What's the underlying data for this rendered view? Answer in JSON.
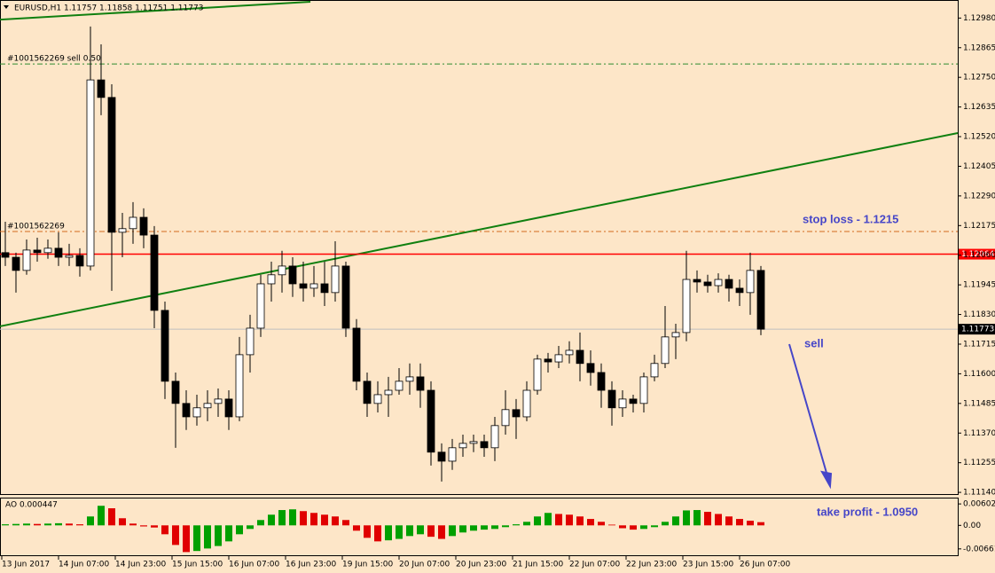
{
  "chart_data": [
    {
      "type": "candlestick",
      "title": "EURUSD,H1  1.11757 1.11858 1.11751 1.11773",
      "ylim": [
        1.1113,
        1.1305
      ],
      "yticks": [
        {
          "value": 1.1298,
          "label": "1.12980"
        },
        1.12865,
        {
          "value": 1.1275,
          "label": "1.12750"
        },
        1.12635,
        {
          "value": 1.1252,
          "label": "1.12520"
        },
        1.12405,
        {
          "value": 1.1229,
          "label": "1.12290"
        },
        1.12175,
        {
          "value": 1.1206,
          "label": "1.12060"
        },
        1.11945,
        {
          "value": 1.1183,
          "label": "1.11830"
        },
        1.11715,
        {
          "value": 1.116,
          "label": "1.11600"
        },
        1.11485,
        {
          "value": 1.1137,
          "label": "1.11370"
        },
        1.11255,
        {
          "value": 1.1114,
          "label": "1.11140"
        }
      ],
      "time_labels": [
        "13 Jun 2017",
        "14 Jun 07:00",
        "14 Jun 23:00",
        "15 Jun 15:00",
        "16 Jun 07:00",
        "16 Jun 23:00",
        "19 Jun 15:00",
        "20 Jun 07:00",
        "20 Jun 23:00",
        "21 Jun 15:00",
        "22 Jun 07:00",
        "22 Jun 23:00",
        "23 Jun 15:00",
        "26 Jun 07:00"
      ],
      "up_color": "#ffffff",
      "down_color": "#000000",
      "values": [
        [
          1.1207,
          1.1219,
          1.12018,
          1.12052
        ],
        [
          1.12052,
          1.1207,
          1.11915,
          1.12001
        ],
        [
          1.12001,
          1.12121,
          1.11984,
          1.1208
        ],
        [
          1.1208,
          1.12128,
          1.12035,
          1.1207
        ],
        [
          1.1207,
          1.12121,
          1.12046,
          1.12087
        ],
        [
          1.12087,
          1.12149,
          1.12018,
          1.12052
        ],
        [
          1.12052,
          1.12104,
          1.12018,
          1.12059
        ],
        [
          1.12059,
          1.12087,
          1.11977,
          1.12018
        ],
        [
          1.12018,
          1.12947,
          1.12001,
          1.1274
        ],
        [
          1.1274,
          1.12878,
          1.12603,
          1.12672
        ],
        [
          1.12672,
          1.12723,
          1.11922,
          1.12149
        ],
        [
          1.12149,
          1.12224,
          1.12052,
          1.12163
        ],
        [
          1.12163,
          1.12266,
          1.12104,
          1.12207
        ],
        [
          1.12207,
          1.12242,
          1.12087,
          1.12138
        ],
        [
          1.12138,
          1.12173,
          1.11777,
          1.11846
        ],
        [
          1.11846,
          1.1188,
          1.11502,
          1.11571
        ],
        [
          1.11571,
          1.11605,
          1.11313,
          1.11485
        ],
        [
          1.11485,
          1.11536,
          1.11382,
          1.11433
        ],
        [
          1.11433,
          1.11519,
          1.11399,
          1.11468
        ],
        [
          1.11468,
          1.11536,
          1.11416,
          1.11485
        ],
        [
          1.11485,
          1.11543,
          1.11433,
          1.11502
        ],
        [
          1.11502,
          1.11536,
          1.11382,
          1.11433
        ],
        [
          1.11433,
          1.11743,
          1.11416,
          1.11674
        ],
        [
          1.11674,
          1.11829,
          1.11605,
          1.11777
        ],
        [
          1.11777,
          1.11984,
          1.11743,
          1.11949
        ],
        [
          1.11949,
          1.12035,
          1.1188,
          1.11984
        ],
        [
          1.11984,
          1.12077,
          1.11915,
          1.12018
        ],
        [
          1.12018,
          1.12052,
          1.11898,
          1.11949
        ],
        [
          1.11949,
          1.12035,
          1.1188,
          1.11932
        ],
        [
          1.11932,
          1.12018,
          1.11898,
          1.11949
        ],
        [
          1.11949,
          1.12035,
          1.11863,
          1.11915
        ],
        [
          1.11915,
          1.12114,
          1.1188,
          1.12018
        ],
        [
          1.12018,
          1.12035,
          1.11743,
          1.11777
        ],
        [
          1.11777,
          1.11812,
          1.11536,
          1.11571
        ],
        [
          1.11571,
          1.11605,
          1.11433,
          1.11485
        ],
        [
          1.11485,
          1.11571,
          1.1145,
          1.11519
        ],
        [
          1.11519,
          1.11588,
          1.11433,
          1.11536
        ],
        [
          1.11536,
          1.11622,
          1.11519,
          1.11571
        ],
        [
          1.11571,
          1.1164,
          1.11519,
          1.11588
        ],
        [
          1.11588,
          1.1164,
          1.11468,
          1.11536
        ],
        [
          1.11536,
          1.11571,
          1.11244,
          1.11296
        ],
        [
          1.11296,
          1.1133,
          1.11182,
          1.11261
        ],
        [
          1.11261,
          1.11347,
          1.11227,
          1.11313
        ],
        [
          1.11313,
          1.11364,
          1.11278,
          1.1133
        ],
        [
          1.1133,
          1.11364,
          1.11296,
          1.11337
        ],
        [
          1.11337,
          1.11364,
          1.11278,
          1.11313
        ],
        [
          1.11313,
          1.11433,
          1.11261,
          1.11399
        ],
        [
          1.11399,
          1.11536,
          1.11364,
          1.11461
        ],
        [
          1.11461,
          1.11502,
          1.11347,
          1.11433
        ],
        [
          1.11433,
          1.11571,
          1.11416,
          1.11536
        ],
        [
          1.11536,
          1.11674,
          1.11519,
          1.11657
        ],
        [
          1.11657,
          1.11681,
          1.11605,
          1.11646
        ],
        [
          1.11646,
          1.11708,
          1.11622,
          1.11674
        ],
        [
          1.11674,
          1.11726,
          1.1164,
          1.11691
        ],
        [
          1.11691,
          1.1176,
          1.11571,
          1.1164
        ],
        [
          1.1164,
          1.11691,
          1.11554,
          1.11605
        ],
        [
          1.11605,
          1.1164,
          1.11468,
          1.11536
        ],
        [
          1.11536,
          1.11571,
          1.11399,
          1.11468
        ],
        [
          1.11468,
          1.11536,
          1.11433,
          1.11502
        ],
        [
          1.11502,
          1.11519,
          1.1145,
          1.11485
        ],
        [
          1.11485,
          1.11605,
          1.1145,
          1.11588
        ],
        [
          1.11588,
          1.11674,
          1.11571,
          1.1164
        ],
        [
          1.1164,
          1.11863,
          1.11622,
          1.11743
        ],
        [
          1.11743,
          1.11794,
          1.11657,
          1.1176
        ],
        [
          1.1176,
          1.12077,
          1.11726,
          1.11966
        ],
        [
          1.11966,
          1.12001,
          1.11915,
          1.11956
        ],
        [
          1.11956,
          1.11984,
          1.11915,
          1.11942
        ],
        [
          1.11942,
          1.1199,
          1.11915,
          1.11966
        ],
        [
          1.11966,
          1.11984,
          1.1188,
          1.11932
        ],
        [
          1.11932,
          1.11966,
          1.11863,
          1.11915
        ],
        [
          1.11915,
          1.1207,
          1.11829,
          1.12001
        ],
        [
          1.12001,
          1.12018,
          1.1175,
          1.11773
        ]
      ],
      "current_price": 1.11773,
      "hlines": [
        {
          "value": 1.12064,
          "color": "#ff0000"
        }
      ],
      "orders": [
        {
          "label": "#1001562269 sell 0.50",
          "value": 1.12802,
          "color": "#2e8b2e"
        },
        {
          "label": "#1001562269",
          "value": 1.12152,
          "color": "#d2691e"
        }
      ],
      "trendlines": [
        {
          "color": "#108010",
          "x": [
            -0.5,
            89.5
          ],
          "y": [
            1.11784,
            1.12534
          ]
        },
        {
          "color": "#108010",
          "x": [
            -0.5,
            28.67
          ],
          "y": [
            1.12974,
            1.13043
          ]
        }
      ],
      "annotations": [
        "stop loss - 1.1215",
        "sell",
        "take profit - 1.0950"
      ]
    },
    {
      "type": "bar",
      "title": "AO 0.000447",
      "ylim": [
        -0.0084,
        0.0078
      ],
      "yticks": [
        0.006025,
        {
          "value": 0,
          "label": "0.00"
        },
        -0.00661
      ],
      "up_color": "#00a000",
      "down_color": "#e00000",
      "values": [
        0.0003,
        0.0004,
        0.0005,
        0.0004,
        0.0005,
        0.0006,
        0.0005,
        0.0003,
        0.0025,
        0.0055,
        0.0048,
        0.002,
        0.0005,
        -0.0003,
        -0.0006,
        -0.0025,
        -0.0055,
        -0.0075,
        -0.0072,
        -0.0065,
        -0.0058,
        -0.0045,
        -0.0025,
        -0.001,
        0.0015,
        0.003,
        0.0043,
        0.0045,
        0.004,
        0.0035,
        0.003,
        0.0025,
        0.0015,
        -0.0015,
        -0.0035,
        -0.0045,
        -0.0042,
        -0.0038,
        -0.003,
        -0.0025,
        -0.0032,
        -0.0038,
        -0.003,
        -0.002,
        -0.0015,
        -0.0012,
        -0.001,
        -0.0005,
        0.0003,
        0.001,
        0.0025,
        0.0035,
        0.0032,
        0.003,
        0.0025,
        0.0018,
        0.001,
        0.0002,
        -0.0008,
        -0.0012,
        -0.001,
        -0.0005,
        0.001,
        0.0025,
        0.0042,
        0.0043,
        0.0038,
        0.0032,
        0.0025,
        0.0018,
        0.0013,
        0.0009
      ]
    }
  ]
}
